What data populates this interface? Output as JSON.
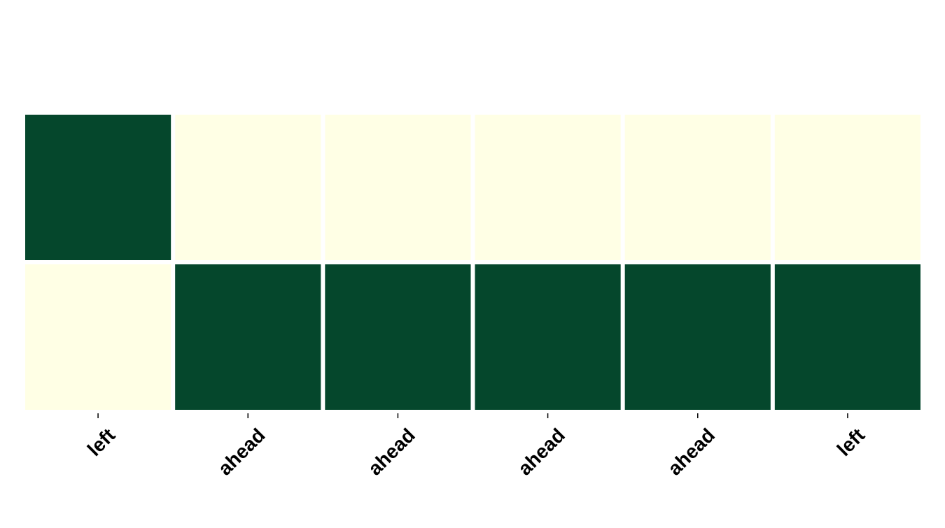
{
  "chart_data": {
    "type": "heatmap",
    "title": "",
    "xlabel": "",
    "ylabel": "",
    "x_tick_labels": [
      "left",
      "ahead",
      "ahead",
      "ahead",
      "ahead",
      "left"
    ],
    "y_tick_labels": [],
    "values": [
      [
        1,
        0,
        0,
        0,
        0,
        0
      ],
      [
        0,
        1,
        1,
        1,
        1,
        1
      ]
    ],
    "value_range": [
      0,
      1
    ],
    "colormap": {
      "low": "#ffffe5",
      "high": "#05472c"
    },
    "grid": false,
    "cell_separator_color": "#ffffff"
  }
}
